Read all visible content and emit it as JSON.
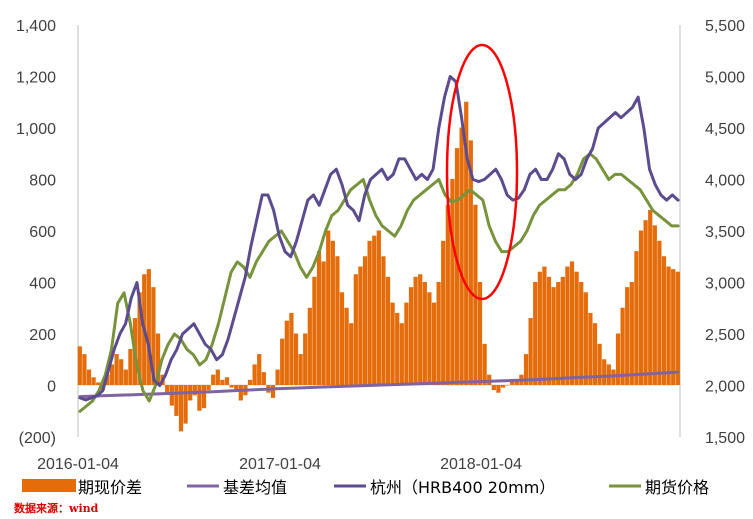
{
  "chart_data": {
    "type": "bar+line",
    "title": "",
    "source_note": "数据来源：wind",
    "x_labels": [
      "2016-01-04",
      "2017-01-04",
      "2018-01-04"
    ],
    "left_axis": {
      "ticks": [
        "1,400",
        "1,200",
        "1,000",
        "800",
        "600",
        "400",
        "200",
        "0",
        "(200)"
      ],
      "range": [
        -200,
        1400
      ]
    },
    "right_axis": {
      "ticks": [
        "5,500",
        "5,000",
        "4,500",
        "4,000",
        "3,500",
        "3,000",
        "2,500",
        "2,000",
        "1,500"
      ],
      "range": [
        1500,
        5500
      ]
    },
    "legend": [
      {
        "label": "期现价差",
        "color": "#E46C0A",
        "kind": "bar"
      },
      {
        "label": "基差均值",
        "color": "#8064A2",
        "kind": "line"
      },
      {
        "label": "杭州（HRB400 20mm）",
        "color": "#5C4C8F",
        "kind": "line"
      },
      {
        "label": "期货价格",
        "color": "#77933C",
        "kind": "line"
      }
    ],
    "series": [
      {
        "name": "期现价差",
        "axis": "left",
        "values": [
          150,
          120,
          60,
          30,
          10,
          -20,
          40,
          80,
          120,
          100,
          60,
          140,
          260,
          360,
          430,
          450,
          380,
          200,
          40,
          -30,
          -80,
          -120,
          -180,
          -150,
          -60,
          -40,
          -100,
          -90,
          -20,
          40,
          60,
          20,
          30,
          -10,
          -20,
          -60,
          -40,
          20,
          80,
          120,
          50,
          -30,
          -50,
          60,
          180,
          250,
          280,
          200,
          120,
          200,
          300,
          420,
          520,
          480,
          600,
          560,
          500,
          360,
          300,
          240,
          430,
          460,
          500,
          560,
          580,
          600,
          500,
          420,
          320,
          280,
          240,
          320,
          380,
          420,
          430,
          400,
          360,
          320,
          400,
          560,
          700,
          800,
          920,
          1000,
          1100,
          950,
          700,
          400,
          160,
          40,
          -20,
          -30,
          -10,
          0,
          20,
          20,
          40,
          120,
          260,
          400,
          440,
          460,
          420,
          380,
          400,
          420,
          460,
          480,
          440,
          400,
          360,
          280,
          240,
          160,
          100,
          80,
          60,
          200,
          300,
          380,
          400,
          520,
          600,
          640,
          680,
          620,
          560,
          500,
          460,
          450,
          440
        ]
      },
      {
        "name": "基差均值",
        "axis": "left",
        "values": [
          -45,
          -42,
          -39,
          -36,
          -33,
          -29,
          -26,
          -22,
          -18,
          -14,
          -11,
          -8,
          -5,
          -2,
          1,
          4,
          7,
          10,
          13,
          16,
          19,
          23,
          27,
          31,
          35,
          40,
          45,
          50
        ]
      },
      {
        "name": "杭州（HRB400 20mm）",
        "axis": "right",
        "values": [
          1880,
          1860,
          1880,
          1900,
          1950,
          2150,
          2350,
          2500,
          2600,
          2850,
          3000,
          2600,
          2400,
          2050,
          2000,
          2100,
          2250,
          2350,
          2500,
          2550,
          2600,
          2500,
          2400,
          2350,
          2250,
          2300,
          2450,
          2650,
          2850,
          3050,
          3350,
          3600,
          3850,
          3850,
          3700,
          3450,
          3300,
          3250,
          3400,
          3600,
          3800,
          3850,
          3750,
          3900,
          4050,
          4100,
          3950,
          3750,
          3700,
          3600,
          3850,
          4000,
          4050,
          4100,
          4000,
          4050,
          4200,
          4200,
          4100,
          4000,
          4050,
          4000,
          4100,
          4500,
          4800,
          5000,
          4950,
          4600,
          4200,
          4000,
          3980,
          4000,
          4050,
          4100,
          4000,
          3850,
          3800,
          3820,
          3900,
          4050,
          4100,
          4000,
          4000,
          4100,
          4250,
          4200,
          4050,
          4000,
          4050,
          4200,
          4300,
          4500,
          4550,
          4600,
          4650,
          4600,
          4650,
          4700,
          4800,
          4500,
          4100,
          3950,
          3850,
          3800,
          3850,
          3800
        ]
      },
      {
        "name": "期货价格",
        "axis": "right",
        "values": [
          1750,
          1800,
          1850,
          1950,
          2100,
          2350,
          2800,
          2900,
          2600,
          2200,
          1950,
          1850,
          2000,
          2250,
          2400,
          2500,
          2450,
          2350,
          2300,
          2200,
          2250,
          2400,
          2600,
          2850,
          3100,
          3200,
          3150,
          3050,
          3200,
          3300,
          3400,
          3450,
          3500,
          3400,
          3300,
          3150,
          3050,
          3150,
          3300,
          3500,
          3650,
          3700,
          3800,
          3900,
          3950,
          4000,
          3800,
          3650,
          3550,
          3500,
          3450,
          3550,
          3700,
          3800,
          3850,
          3900,
          3950,
          4000,
          3850,
          3780,
          3800,
          3850,
          3900,
          3850,
          3800,
          3550,
          3400,
          3300,
          3300,
          3350,
          3400,
          3500,
          3650,
          3750,
          3800,
          3850,
          3900,
          3900,
          3950,
          4050,
          4200,
          4250,
          4200,
          4100,
          4000,
          4050,
          4050,
          4000,
          3950,
          3900,
          3800,
          3700,
          3650,
          3600,
          3550,
          3550
        ]
      }
    ]
  }
}
